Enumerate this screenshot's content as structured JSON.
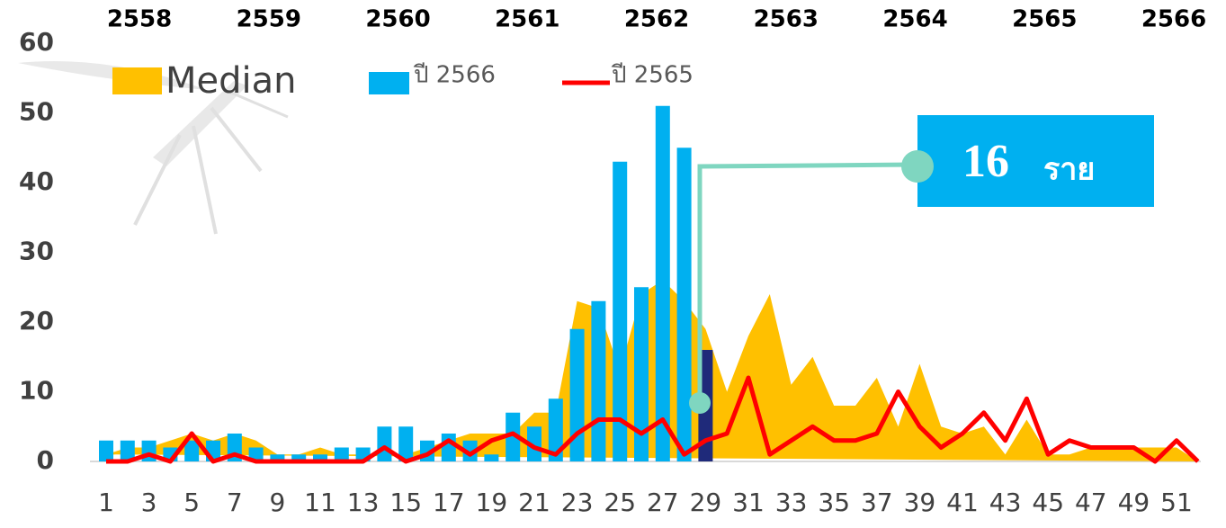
{
  "chart_data": {
    "type": "combo",
    "top_labels": [
      "2558",
      "2559",
      "2560",
      "2561",
      "2562",
      "2563",
      "2564",
      "2565",
      "2566"
    ],
    "categories": [
      1,
      null,
      3,
      null,
      5,
      null,
      7,
      null,
      9,
      null,
      11,
      null,
      13,
      null,
      15,
      null,
      17,
      null,
      19,
      null,
      21,
      null,
      23,
      null,
      25,
      null,
      27,
      null,
      29,
      null,
      31,
      null,
      33,
      null,
      35,
      null,
      37,
      null,
      39,
      null,
      41,
      null,
      43,
      null,
      45,
      null,
      47,
      null,
      49,
      null,
      51,
      null
    ],
    "series": [
      {
        "name": "Median",
        "kind": "area",
        "color": "#ffc000",
        "values": [
          1,
          2,
          2,
          3,
          4,
          3,
          4,
          3,
          1,
          1,
          2,
          1,
          1,
          1,
          1,
          2,
          3,
          4,
          4,
          4,
          7,
          7,
          23,
          22,
          13,
          24,
          26,
          23,
          19,
          10,
          18,
          24,
          11,
          15,
          8,
          8,
          12,
          5,
          14,
          5,
          4,
          5,
          1,
          6,
          1,
          1,
          2,
          2,
          2,
          2,
          2,
          0
        ]
      },
      {
        "name": "ปี 2566",
        "kind": "bar",
        "color": "#00b0f0",
        "highlight_color": "#1f2a7a",
        "highlight_category": 29,
        "values": [
          3,
          3,
          3,
          2,
          3,
          3,
          4,
          2,
          1,
          1,
          1,
          2,
          2,
          5,
          5,
          3,
          4,
          3,
          1,
          7,
          5,
          9,
          19,
          23,
          43,
          25,
          51,
          45,
          16,
          null,
          null,
          null,
          null,
          null,
          null,
          null,
          null,
          null,
          null,
          null,
          null,
          null,
          null,
          null,
          null,
          null,
          null,
          null,
          null,
          null,
          null,
          null
        ]
      },
      {
        "name": "ปี 2565",
        "kind": "line",
        "color": "#ff0000",
        "values": [
          0,
          0,
          1,
          0,
          4,
          0,
          1,
          0,
          0,
          0,
          0,
          0,
          0,
          2,
          0,
          1,
          3,
          1,
          3,
          4,
          2,
          1,
          4,
          6,
          6,
          4,
          6,
          1,
          3,
          4,
          12,
          1,
          3,
          5,
          3,
          3,
          4,
          10,
          5,
          2,
          4,
          7,
          3,
          9,
          1,
          3,
          2,
          2,
          2,
          0,
          3,
          0
        ]
      }
    ],
    "annotation": {
      "number": "16",
      "unit": "ราย"
    },
    "ylim": [
      0,
      60
    ],
    "yticks": [
      0,
      10,
      20,
      30,
      40,
      50,
      60
    ]
  }
}
